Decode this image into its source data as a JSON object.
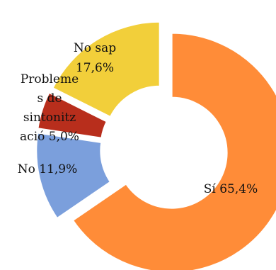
{
  "chart_data": {
    "type": "pie",
    "variant": "donut",
    "categories": [
      "Sí",
      "No",
      "Problemes de sintonització",
      "No sap"
    ],
    "values": [
      65.4,
      11.9,
      5.0,
      17.6
    ],
    "unit": "%",
    "colors": [
      "#FF8C38",
      "#7B9FDC",
      "#B82E1C",
      "#F2CF3A"
    ],
    "exploded": true,
    "legend": "none",
    "data_labels": [
      {
        "lines": [
          "Sí 65,4%"
        ]
      },
      {
        "lines": [
          "No 11,9%"
        ]
      },
      {
        "lines": [
          "Probleme",
          "s de",
          "sintonitz",
          "ació 5,0%"
        ]
      },
      {
        "lines": [
          "No sap",
          "17,6%"
        ]
      }
    ]
  }
}
